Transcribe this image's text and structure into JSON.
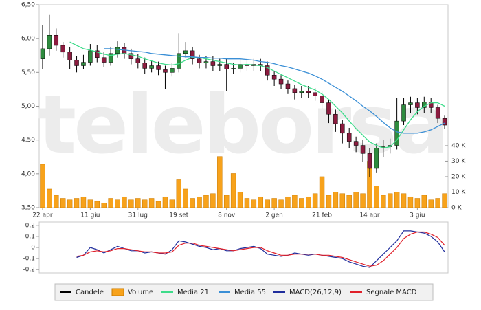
{
  "chart_data": [
    {
      "type": "candlestick",
      "watermark": "teleborsa",
      "categories": [
        "22 apr",
        null,
        null,
        null,
        null,
        null,
        null,
        "11 giu",
        null,
        null,
        null,
        null,
        null,
        null,
        "31 lug",
        null,
        null,
        null,
        null,
        null,
        "19 set",
        null,
        null,
        null,
        null,
        null,
        null,
        "8 nov",
        null,
        null,
        null,
        null,
        null,
        null,
        "2 gen",
        null,
        null,
        null,
        null,
        null,
        null,
        "21 feb",
        null,
        null,
        null,
        null,
        null,
        null,
        "14 apr",
        null,
        null,
        null,
        null,
        null,
        null,
        "3 giu",
        null,
        null,
        null,
        null
      ],
      "ylim": [
        3.5,
        6.5
      ],
      "yticks": [
        {
          "value": 3.5,
          "label": "3,50"
        },
        {
          "value": 4,
          "label": "4,00"
        },
        {
          "value": 4.5,
          "label": "4,50"
        },
        {
          "value": 5,
          "label": "5,00"
        },
        {
          "value": 5.5,
          "label": "5,50"
        },
        {
          "value": 6,
          "label": "6,00"
        },
        {
          "value": 6.5,
          "label": "6,50"
        }
      ],
      "y2lim": [
        0,
        131000
      ],
      "y2ticks": [
        {
          "value": 0,
          "label": "0 K"
        },
        {
          "value": 10000,
          "label": "10 K"
        },
        {
          "value": 20000,
          "label": "20 K"
        },
        {
          "value": 30000,
          "label": "30 K"
        },
        {
          "value": 40000,
          "label": "40 K"
        }
      ],
      "series": [
        {
          "name": "Candele",
          "color": "#000000",
          "up_color": "#2e8b3e",
          "down_color": "#8b1c3f",
          "open": [
            5.7,
            5.85,
            6.05,
            5.9,
            5.8,
            5.68,
            5.6,
            5.65,
            5.82,
            5.72,
            5.65,
            5.78,
            5.87,
            5.78,
            5.7,
            5.64,
            5.56,
            5.6,
            5.54,
            5.5,
            5.56,
            5.78,
            5.82,
            5.7,
            5.64,
            5.66,
            5.6,
            5.62,
            5.55,
            5.56,
            5.62,
            5.6,
            5.62,
            5.6,
            5.46,
            5.4,
            5.33,
            5.26,
            5.2,
            5.22,
            5.2,
            5.15,
            5.05,
            4.88,
            4.74,
            4.6,
            4.48,
            4.42,
            4.3,
            4.08,
            4.38,
            4.4,
            4.42,
            4.78,
            5.02,
            5.05,
            4.98,
            5.06,
            4.98,
            4.82
          ],
          "high": [
            6.2,
            6.35,
            6.15,
            5.95,
            5.88,
            5.74,
            5.76,
            5.92,
            5.9,
            5.8,
            5.88,
            5.96,
            5.94,
            5.85,
            5.77,
            5.72,
            5.68,
            5.66,
            5.6,
            5.64,
            6.08,
            5.95,
            5.88,
            5.76,
            5.74,
            5.74,
            5.7,
            5.7,
            5.64,
            5.7,
            5.7,
            5.7,
            5.7,
            5.66,
            5.52,
            5.46,
            5.38,
            5.32,
            5.3,
            5.3,
            5.27,
            5.22,
            5.1,
            4.95,
            4.8,
            4.68,
            4.55,
            4.5,
            4.38,
            4.45,
            4.5,
            4.52,
            5.12,
            5.12,
            5.14,
            5.12,
            5.14,
            5.12,
            5.02,
            4.86
          ],
          "low": [
            5.55,
            5.75,
            5.82,
            5.72,
            5.55,
            5.5,
            5.55,
            5.6,
            5.65,
            5.58,
            5.6,
            5.72,
            5.7,
            5.62,
            5.56,
            5.48,
            5.5,
            5.46,
            5.25,
            5.44,
            5.5,
            5.72,
            5.62,
            5.56,
            5.56,
            5.52,
            5.52,
            5.22,
            5.48,
            5.5,
            5.52,
            5.52,
            5.52,
            5.38,
            5.3,
            5.25,
            5.18,
            5.1,
            5.12,
            5.12,
            5.08,
            4.96,
            4.75,
            4.62,
            4.45,
            4.38,
            4.32,
            4.18,
            3.95,
            4.02,
            4.25,
            4.3,
            4.36,
            4.72,
            4.9,
            4.88,
            4.9,
            4.9,
            4.75,
            4.66
          ],
          "close": [
            5.85,
            6.05,
            5.9,
            5.8,
            5.68,
            5.6,
            5.65,
            5.82,
            5.72,
            5.65,
            5.78,
            5.87,
            5.78,
            5.7,
            5.64,
            5.56,
            5.6,
            5.54,
            5.5,
            5.56,
            5.78,
            5.82,
            5.7,
            5.64,
            5.66,
            5.6,
            5.62,
            5.55,
            5.56,
            5.62,
            5.6,
            5.62,
            5.6,
            5.46,
            5.4,
            5.33,
            5.26,
            5.2,
            5.22,
            5.2,
            5.15,
            5.05,
            4.88,
            4.74,
            4.6,
            4.48,
            4.42,
            4.3,
            4.08,
            4.38,
            4.4,
            4.42,
            4.78,
            5.02,
            5.05,
            4.98,
            5.06,
            4.98,
            4.82,
            4.72
          ]
        },
        {
          "name": "Volume",
          "color": "#f7a21b",
          "axis": "y2",
          "values": [
            28000,
            12000,
            8000,
            6000,
            5000,
            6000,
            7000,
            5000,
            4000,
            3000,
            6000,
            5000,
            7000,
            5000,
            6000,
            5000,
            6000,
            4000,
            7000,
            5000,
            18000,
            12000,
            6000,
            7000,
            8000,
            9000,
            33000,
            8000,
            22000,
            10000,
            6000,
            5000,
            7000,
            5000,
            6000,
            5000,
            7000,
            8000,
            6000,
            7000,
            9000,
            20000,
            8000,
            10000,
            9000,
            8000,
            10000,
            9000,
            30000,
            14000,
            8000,
            9000,
            10000,
            9000,
            7000,
            6000,
            8000,
            5000,
            6000,
            9000
          ]
        },
        {
          "name": "Media 21",
          "color": "#3ddc8a",
          "values": [
            null,
            null,
            null,
            null,
            5.95,
            5.9,
            5.85,
            5.83,
            5.8,
            5.77,
            5.75,
            5.77,
            5.78,
            5.76,
            5.74,
            5.7,
            5.67,
            5.64,
            5.62,
            5.61,
            5.63,
            5.68,
            5.72,
            5.72,
            5.7,
            5.68,
            5.66,
            5.64,
            5.62,
            5.61,
            5.62,
            5.61,
            5.6,
            5.57,
            5.52,
            5.47,
            5.42,
            5.37,
            5.32,
            5.28,
            5.24,
            5.18,
            5.1,
            5.0,
            4.9,
            4.78,
            4.67,
            4.57,
            4.47,
            4.42,
            4.38,
            4.4,
            4.5,
            4.65,
            4.8,
            4.92,
            5.0,
            5.05,
            5.05,
            5.0
          ]
        },
        {
          "name": "Media 55",
          "color": "#3a8fd6",
          "values": [
            null,
            null,
            null,
            null,
            null,
            null,
            null,
            null,
            null,
            5.85,
            5.85,
            5.84,
            5.83,
            5.82,
            5.81,
            5.8,
            5.78,
            5.77,
            5.76,
            5.75,
            5.74,
            5.73,
            5.73,
            5.72,
            5.72,
            5.71,
            5.71,
            5.7,
            5.7,
            5.7,
            5.69,
            5.68,
            5.66,
            5.65,
            5.63,
            5.6,
            5.58,
            5.55,
            5.52,
            5.49,
            5.45,
            5.4,
            5.34,
            5.28,
            5.22,
            5.15,
            5.08,
            5.0,
            4.93,
            4.85,
            4.76,
            4.68,
            4.62,
            4.6,
            4.6,
            4.6,
            4.62,
            4.65,
            4.7,
            4.75
          ]
        }
      ]
    },
    {
      "type": "line",
      "ylim": [
        -0.23,
        0.23
      ],
      "yticks": [
        {
          "value": -0.2,
          "label": "-0,2"
        },
        {
          "value": -0.1,
          "label": "-0,1"
        },
        0,
        {
          "value": 0.1,
          "label": "0,1"
        },
        {
          "value": 0.2,
          "label": "0,2"
        }
      ],
      "series": [
        {
          "name": "MACD(26,12,9)",
          "color": "#1f2d9c",
          "values": [
            null,
            null,
            null,
            null,
            null,
            -0.09,
            -0.07,
            0.0,
            -0.02,
            -0.05,
            -0.02,
            0.01,
            -0.01,
            -0.03,
            -0.03,
            -0.05,
            -0.04,
            -0.05,
            -0.06,
            -0.02,
            0.06,
            0.05,
            0.03,
            0.01,
            0.0,
            -0.02,
            -0.01,
            -0.03,
            -0.03,
            -0.01,
            0.0,
            0.01,
            -0.01,
            -0.06,
            -0.07,
            -0.08,
            -0.07,
            -0.05,
            -0.06,
            -0.07,
            -0.06,
            -0.07,
            -0.08,
            -0.09,
            -0.1,
            -0.13,
            -0.15,
            -0.17,
            -0.18,
            -0.12,
            -0.06,
            0.0,
            0.06,
            0.15,
            0.15,
            0.14,
            0.13,
            0.1,
            0.05,
            -0.04
          ]
        },
        {
          "name": "Segnale MACD",
          "color": "#e0202a",
          "values": [
            null,
            null,
            null,
            null,
            null,
            -0.08,
            -0.07,
            -0.04,
            -0.03,
            -0.04,
            -0.03,
            -0.01,
            -0.01,
            -0.02,
            -0.03,
            -0.04,
            -0.04,
            -0.05,
            -0.05,
            -0.04,
            0.02,
            0.04,
            0.04,
            0.02,
            0.01,
            0.0,
            -0.01,
            -0.02,
            -0.03,
            -0.02,
            -0.01,
            0.0,
            0.0,
            -0.03,
            -0.05,
            -0.07,
            -0.07,
            -0.06,
            -0.06,
            -0.06,
            -0.06,
            -0.07,
            -0.07,
            -0.08,
            -0.09,
            -0.11,
            -0.13,
            -0.15,
            -0.17,
            -0.16,
            -0.12,
            -0.06,
            0.0,
            0.08,
            0.12,
            0.14,
            0.14,
            0.12,
            0.09,
            0.02
          ]
        }
      ]
    }
  ]
}
